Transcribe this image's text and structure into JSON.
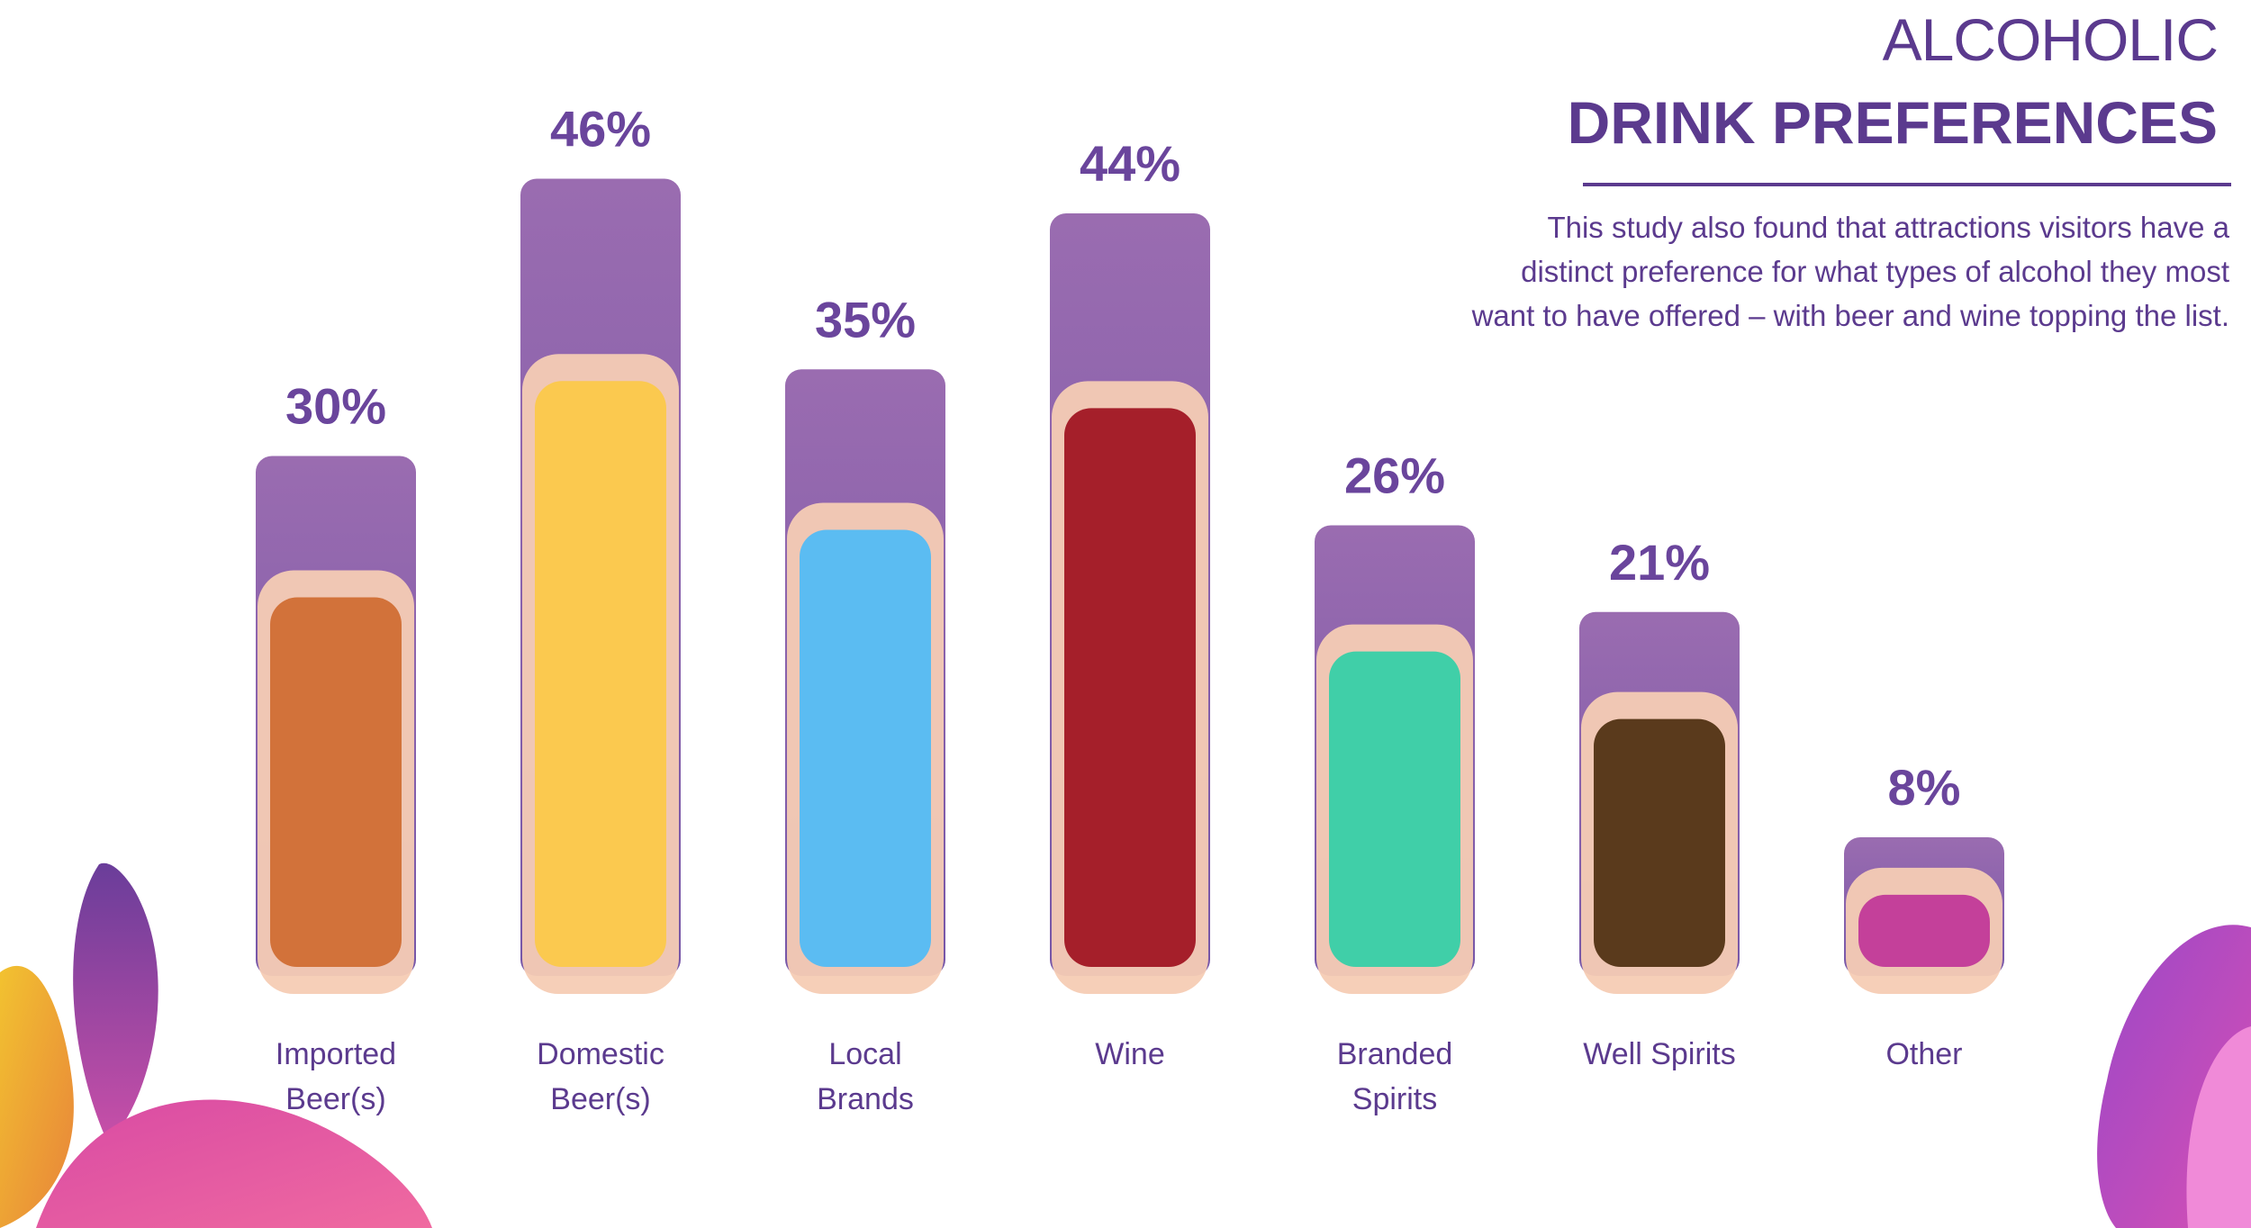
{
  "chart_data": {
    "type": "bar",
    "title": "ALCOHOLIC",
    "subtitle": "DRINK PREFERENCES",
    "description": "This study also found that attractions visitors have a distinct preference for what types of alcohol they most want to have offered – with beer and wine topping the list.",
    "categories": [
      "Imported Beer(s)",
      "Domestic Beer(s)",
      "Local Brands",
      "Wine",
      "Branded Spirits",
      "Well Spirits",
      "Other"
    ],
    "values": [
      30,
      46,
      35,
      44,
      26,
      21,
      8
    ],
    "value_labels": [
      "30%",
      "46%",
      "35%",
      "44%",
      "26%",
      "21%",
      "8%"
    ],
    "color": "#8a62ae"
  }
}
